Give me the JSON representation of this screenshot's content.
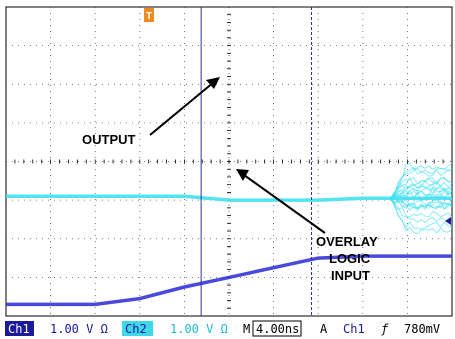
{
  "chart_data": {
    "type": "line",
    "title": "",
    "xlabel": "",
    "ylabel": "",
    "grid": true,
    "x": [
      0,
      4,
      8,
      12,
      16,
      20,
      24,
      28,
      32,
      36,
      40
    ],
    "series": [
      {
        "name": "",
        "values": [
          3.1,
          3.1,
          3.1,
          3.1,
          3.1,
          3.0,
          3.0,
          3.0,
          3.05,
          3.05,
          3.05
        ]
      },
      {
        "name": "",
        "values": [
          0.3,
          0.3,
          0.3,
          0.45,
          0.75,
          1.0,
          1.25,
          1.5,
          1.55,
          1.55,
          1.55
        ]
      }
    ],
    "annotations": [
      {
        "text": "OUTPUT"
      },
      {
        "text": "OVERLAY"
      },
      {
        "text": "LOGIC"
      },
      {
        "text": "INPUT"
      }
    ]
  },
  "status_bar": {
    "ch1_label": "Ch1",
    "ch1_scale": "1.00 V Ω",
    "ch2_label": "Ch2",
    "ch2_scale": "1.00 V Ω",
    "timebase_label": "M",
    "timebase_value": "4.00ns",
    "acq_label": "A",
    "trig_source": "Ch1",
    "trig_slope": "ƒ",
    "trig_level": "780mV"
  },
  "colors": {
    "output_trace": "#40e0f0",
    "input_trace": "#3535d8",
    "cursor": "#3030a0",
    "status_ch1_bg": "#1a1a9a",
    "status_ch2_bg": "#40d8e8",
    "trigger_marker": "#f08a20"
  }
}
